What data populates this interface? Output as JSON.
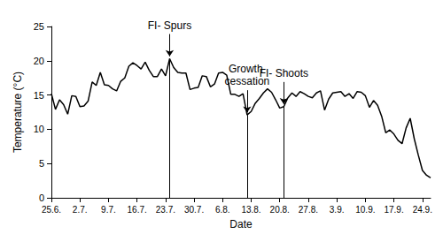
{
  "chart_data": {
    "type": "line",
    "x_label": "Date",
    "y_label": "Temperature (°C)",
    "categories": [
      "25.6.",
      null,
      null,
      null,
      null,
      null,
      null,
      "2.7.",
      null,
      null,
      null,
      null,
      null,
      null,
      "9.7.",
      null,
      null,
      null,
      null,
      null,
      null,
      "16.7.",
      null,
      null,
      null,
      null,
      null,
      null,
      "23.7.",
      null,
      null,
      null,
      null,
      null,
      null,
      "30.7.",
      null,
      null,
      null,
      null,
      null,
      null,
      "6.8.",
      null,
      null,
      null,
      null,
      null,
      null,
      "13.8.",
      null,
      null,
      null,
      null,
      null,
      null,
      "20.8.",
      null,
      null,
      null,
      null,
      null,
      null,
      "27.8.",
      null,
      null,
      null,
      null,
      null,
      null,
      "3.9.",
      null,
      null,
      null,
      null,
      null,
      null,
      "10.9.",
      null,
      null,
      null,
      null,
      null,
      null,
      "17.9.",
      null,
      null,
      null,
      null,
      null,
      null,
      "24.9.",
      null,
      null
    ],
    "values": [
      15.2,
      12.9,
      14.3,
      13.6,
      12.2,
      14.9,
      14.8,
      13.3,
      13.4,
      14.1,
      16.9,
      16.4,
      18.3,
      16.5,
      16.4,
      15.9,
      15.6,
      17.0,
      17.5,
      19.2,
      19.7,
      19.3,
      18.8,
      19.8,
      18.6,
      17.7,
      17.7,
      18.8,
      17.8,
      20.3,
      19.0,
      18.3,
      18.2,
      18.2,
      15.8,
      16.0,
      16.1,
      17.8,
      17.7,
      16.2,
      16.6,
      18.2,
      18.3,
      17.9,
      15.1,
      15.1,
      14.8,
      15.2,
      12.1,
      12.6,
      13.8,
      14.5,
      15.3,
      15.9,
      15.4,
      14.3,
      13.1,
      13.3,
      14.6,
      15.3,
      14.8,
      15.5,
      15.2,
      14.8,
      14.6,
      15.3,
      15.6,
      12.8,
      14.4,
      15.3,
      15.4,
      15.5,
      14.8,
      15.2,
      14.5,
      15.5,
      15.4,
      14.9,
      13.2,
      14.2,
      13.5,
      11.9,
      9.5,
      9.9,
      9.3,
      8.4,
      7.9,
      10.2,
      11.6,
      8.6,
      6.2,
      4.0,
      3.3,
      2.9
    ],
    "color": "#000000",
    "marker": "none",
    "line_style": "solid",
    "ylim": [
      0,
      25
    ],
    "yticks": [
      0,
      5,
      10,
      15,
      20,
      25
    ],
    "grid": false,
    "annotations": [
      {
        "text": "FI- Spurs",
        "x": 29
      },
      {
        "text": "Growth cessation",
        "x": 48
      },
      {
        "text": "FI- Shoots",
        "x": 57
      }
    ]
  }
}
